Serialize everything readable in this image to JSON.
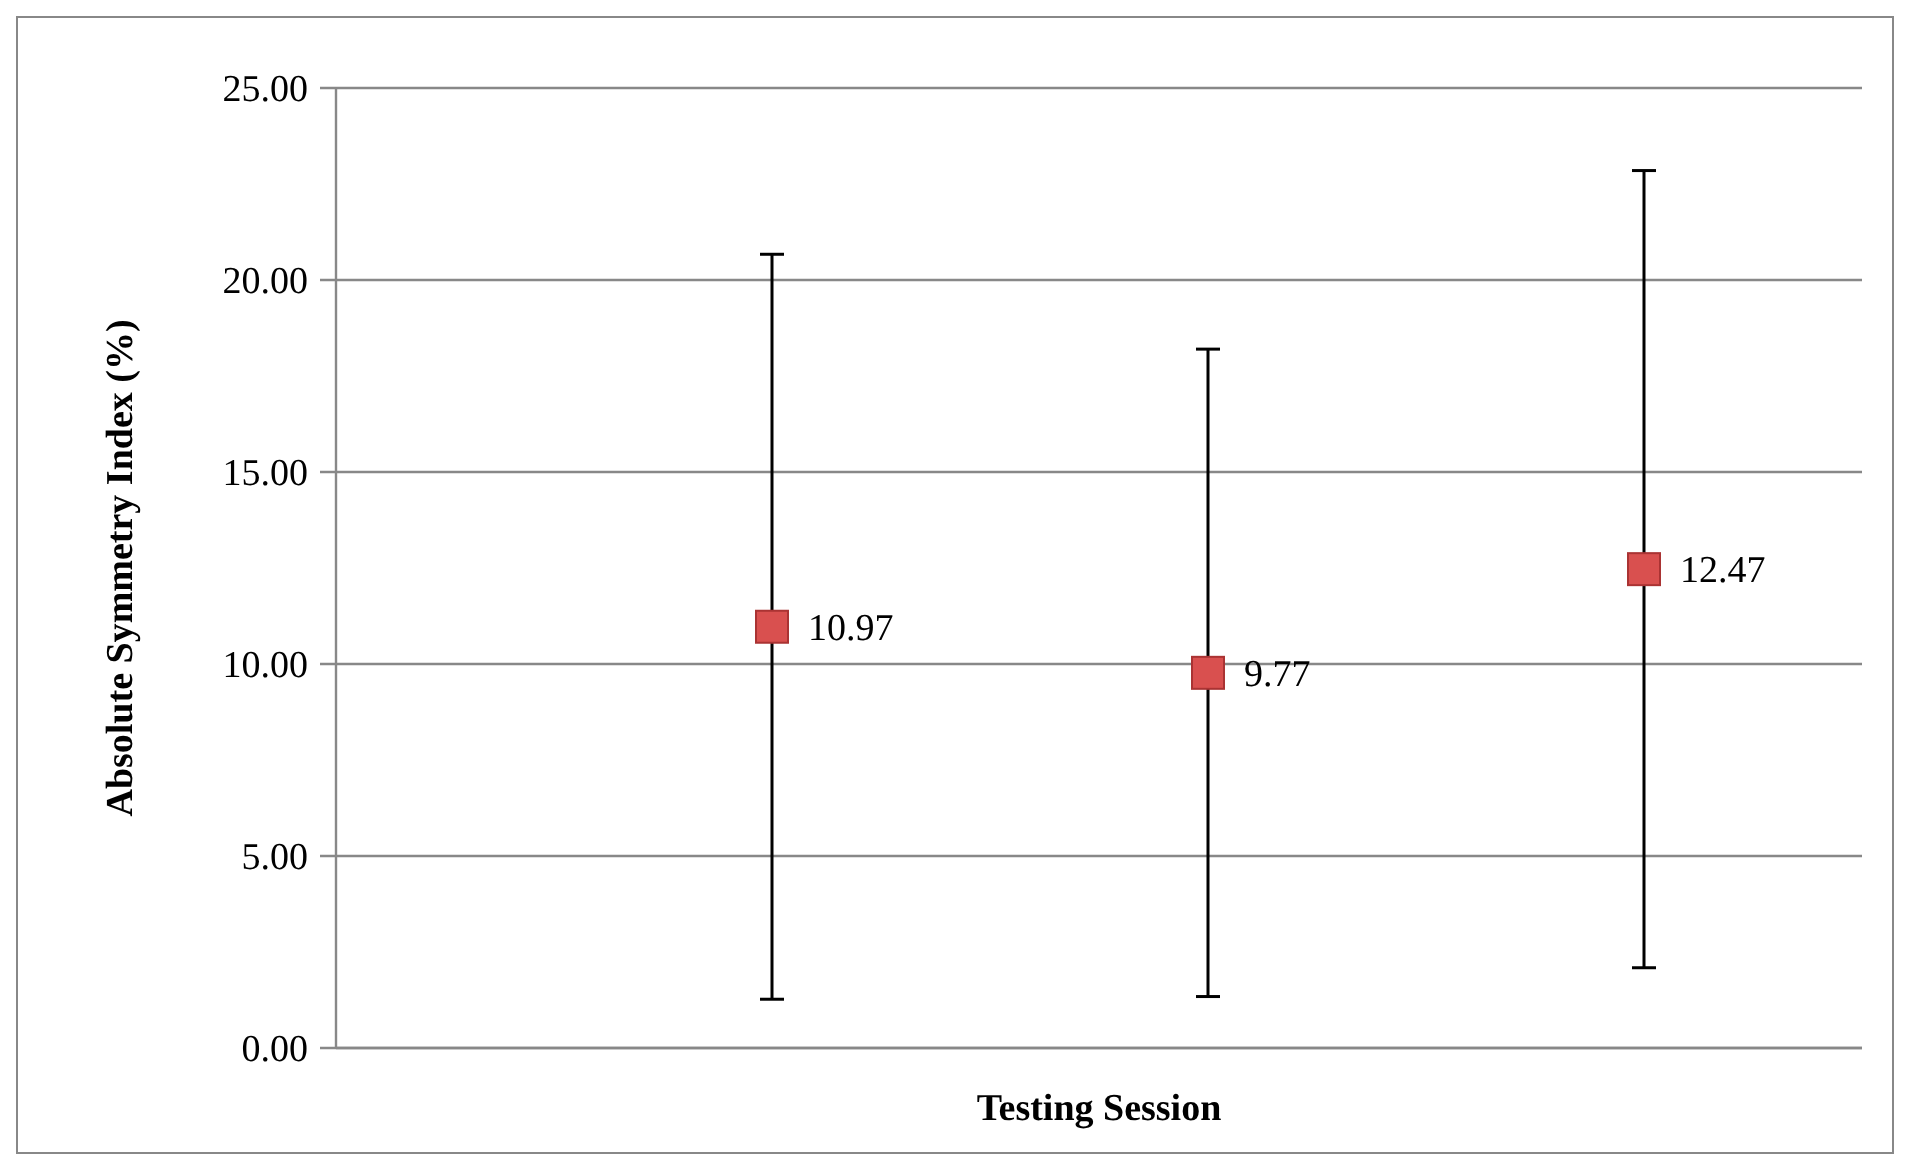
{
  "chart_data": {
    "type": "scatter",
    "xlabel": "Testing Session",
    "ylabel": "Absolute Symmetry Index (%)",
    "categories": [
      null,
      null,
      null
    ],
    "values": [
      10.97,
      9.77,
      12.47
    ],
    "errors": [
      9.7,
      8.43,
      10.38
    ],
    "color": "#d9504f",
    "marker": "square",
    "data_labels": true,
    "grid": "y",
    "ylim": [
      0,
      25
    ],
    "yticks": [
      {
        "value": 0,
        "label": "0.00"
      },
      {
        "value": 5,
        "label": "5.00"
      },
      {
        "value": 10,
        "label": "10.00"
      },
      {
        "value": 15,
        "label": "15.00"
      },
      {
        "value": 20,
        "label": "20.00"
      },
      {
        "value": 25,
        "label": "25.00"
      }
    ]
  }
}
